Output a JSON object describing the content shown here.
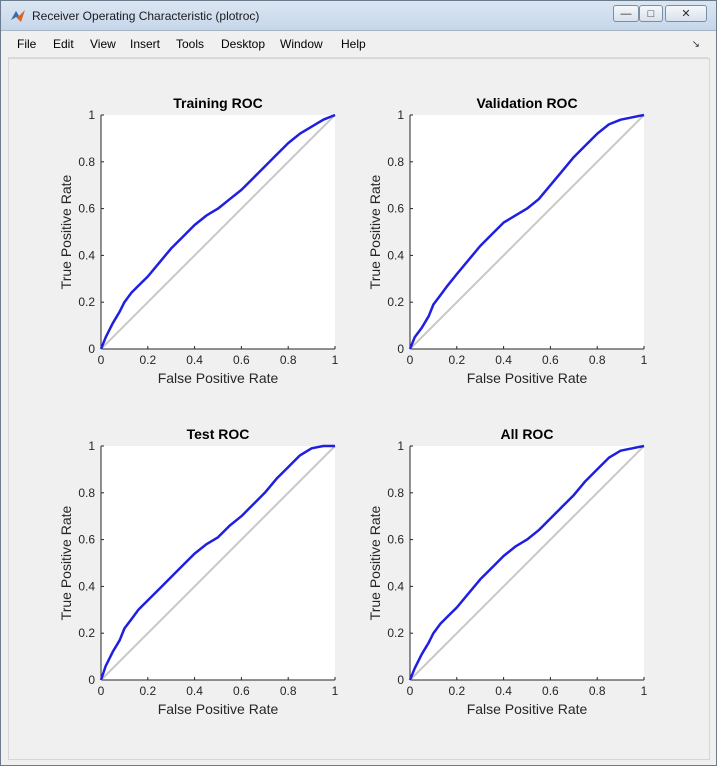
{
  "window": {
    "title": "Receiver Operating Characteristic (plotroc)",
    "minimize_symbol": "—",
    "maximize_symbol": "□",
    "close_symbol": "✕"
  },
  "menu": [
    "File",
    "Edit",
    "View",
    "Insert",
    "Tools",
    "Desktop",
    "Window",
    "Help"
  ],
  "colors": {
    "roc_line": "#1f1fe0",
    "diagonal": "#c8c8c8"
  },
  "chart_data": [
    {
      "type": "line",
      "title": "Training ROC",
      "xlabel": "False Positive Rate",
      "ylabel": "True Positive Rate",
      "xlim": [
        0,
        1
      ],
      "ylim": [
        0,
        1
      ],
      "xticks": [
        "0",
        "0.2",
        "0.4",
        "0.6",
        "0.8",
        "1"
      ],
      "yticks": [
        "0",
        "0.2",
        "0.4",
        "0.6",
        "0.8",
        "1"
      ],
      "grid": false,
      "series": [
        {
          "x": [
            0,
            0.02,
            0.05,
            0.08,
            0.1,
            0.13,
            0.16,
            0.2,
            0.25,
            0.3,
            0.35,
            0.4,
            0.45,
            0.5,
            0.55,
            0.6,
            0.65,
            0.7,
            0.75,
            0.8,
            0.85,
            0.9,
            0.95,
            1
          ],
          "y": [
            0,
            0.05,
            0.11,
            0.16,
            0.2,
            0.24,
            0.27,
            0.31,
            0.37,
            0.43,
            0.48,
            0.53,
            0.57,
            0.6,
            0.64,
            0.68,
            0.73,
            0.78,
            0.83,
            0.88,
            0.92,
            0.95,
            0.98,
            1
          ]
        }
      ],
      "reference_line": {
        "x": [
          0,
          1
        ],
        "y": [
          0,
          1
        ]
      }
    },
    {
      "type": "line",
      "title": "Validation ROC",
      "xlabel": "False Positive Rate",
      "ylabel": "True Positive Rate",
      "xlim": [
        0,
        1
      ],
      "ylim": [
        0,
        1
      ],
      "xticks": [
        "0",
        "0.2",
        "0.4",
        "0.6",
        "0.8",
        "1"
      ],
      "yticks": [
        "0",
        "0.2",
        "0.4",
        "0.6",
        "0.8",
        "1"
      ],
      "grid": false,
      "series": [
        {
          "x": [
            0,
            0.02,
            0.05,
            0.08,
            0.1,
            0.13,
            0.16,
            0.2,
            0.25,
            0.3,
            0.35,
            0.4,
            0.45,
            0.5,
            0.55,
            0.6,
            0.65,
            0.7,
            0.75,
            0.8,
            0.85,
            0.9,
            0.95,
            1
          ],
          "y": [
            0,
            0.05,
            0.09,
            0.14,
            0.19,
            0.23,
            0.27,
            0.32,
            0.38,
            0.44,
            0.49,
            0.54,
            0.57,
            0.6,
            0.64,
            0.7,
            0.76,
            0.82,
            0.87,
            0.92,
            0.96,
            0.98,
            0.99,
            1
          ]
        }
      ],
      "reference_line": {
        "x": [
          0,
          1
        ],
        "y": [
          0,
          1
        ]
      }
    },
    {
      "type": "line",
      "title": "Test ROC",
      "xlabel": "False Positive Rate",
      "ylabel": "True Positive Rate",
      "xlim": [
        0,
        1
      ],
      "ylim": [
        0,
        1
      ],
      "xticks": [
        "0",
        "0.2",
        "0.4",
        "0.6",
        "0.8",
        "1"
      ],
      "yticks": [
        "0",
        "0.2",
        "0.4",
        "0.6",
        "0.8",
        "1"
      ],
      "grid": false,
      "series": [
        {
          "x": [
            0,
            0.02,
            0.05,
            0.08,
            0.1,
            0.13,
            0.16,
            0.2,
            0.25,
            0.3,
            0.35,
            0.4,
            0.45,
            0.5,
            0.55,
            0.6,
            0.65,
            0.7,
            0.75,
            0.8,
            0.85,
            0.9,
            0.95,
            1
          ],
          "y": [
            0,
            0.06,
            0.12,
            0.17,
            0.22,
            0.26,
            0.3,
            0.34,
            0.39,
            0.44,
            0.49,
            0.54,
            0.58,
            0.61,
            0.66,
            0.7,
            0.75,
            0.8,
            0.86,
            0.91,
            0.96,
            0.99,
            1,
            1
          ]
        }
      ],
      "reference_line": {
        "x": [
          0,
          1
        ],
        "y": [
          0,
          1
        ]
      }
    },
    {
      "type": "line",
      "title": "All ROC",
      "xlabel": "False Positive Rate",
      "ylabel": "True Positive Rate",
      "xlim": [
        0,
        1
      ],
      "ylim": [
        0,
        1
      ],
      "xticks": [
        "0",
        "0.2",
        "0.4",
        "0.6",
        "0.8",
        "1"
      ],
      "yticks": [
        "0",
        "0.2",
        "0.4",
        "0.6",
        "0.8",
        "1"
      ],
      "grid": false,
      "series": [
        {
          "x": [
            0,
            0.02,
            0.05,
            0.08,
            0.1,
            0.13,
            0.16,
            0.2,
            0.25,
            0.3,
            0.35,
            0.4,
            0.45,
            0.5,
            0.55,
            0.6,
            0.65,
            0.7,
            0.75,
            0.8,
            0.85,
            0.9,
            0.95,
            1
          ],
          "y": [
            0,
            0.05,
            0.11,
            0.16,
            0.2,
            0.24,
            0.27,
            0.31,
            0.37,
            0.43,
            0.48,
            0.53,
            0.57,
            0.6,
            0.64,
            0.69,
            0.74,
            0.79,
            0.85,
            0.9,
            0.95,
            0.98,
            0.99,
            1
          ]
        }
      ],
      "reference_line": {
        "x": [
          0,
          1
        ],
        "y": [
          0,
          1
        ]
      }
    }
  ]
}
